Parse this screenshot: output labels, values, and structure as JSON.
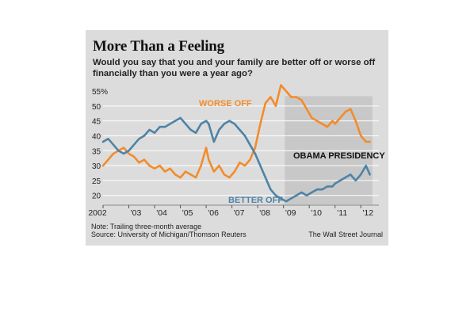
{
  "title": "More Than a Feeling",
  "subtitle": "Would you say that you and your family are better off or worse off financially than you were a year ago?",
  "note": "Note: Trailing three-month average",
  "source": "Source: University of Michigan/Thomson Reuters",
  "credit": "The Wall Street Journal",
  "colors": {
    "worse": "#f28c2a",
    "better": "#4e83a6",
    "shade": "#c8c8c8",
    "background": "#dcdcdc",
    "grid": "#ffffff"
  },
  "chart_data": {
    "type": "line",
    "ylim": [
      17,
      55
    ],
    "y_ticks": [
      "55%",
      "50",
      "45",
      "40",
      "35",
      "30",
      "25",
      "20"
    ],
    "x_ticks": [
      "2002",
      "'03",
      "'04",
      "'05",
      "'06",
      "'07",
      "'08",
      "'09",
      "'10",
      "'11",
      "'12"
    ],
    "shaded_region": {
      "label": "OBAMA PRESIDENCY",
      "x_start": 2009.05,
      "x_end": 2012.45
    },
    "series": [
      {
        "name": "WORSE OFF",
        "x": [
          2002.0,
          2002.2,
          2002.4,
          2002.6,
          2002.8,
          2003.0,
          2003.2,
          2003.4,
          2003.6,
          2003.8,
          2004.0,
          2004.2,
          2004.4,
          2004.6,
          2004.8,
          2005.0,
          2005.2,
          2005.4,
          2005.6,
          2005.8,
          2006.0,
          2006.1,
          2006.3,
          2006.5,
          2006.7,
          2006.9,
          2007.1,
          2007.3,
          2007.5,
          2007.7,
          2007.9,
          2008.1,
          2008.3,
          2008.5,
          2008.7,
          2008.9,
          2009.1,
          2009.3,
          2009.5,
          2009.7,
          2009.9,
          2010.1,
          2010.3,
          2010.5,
          2010.7,
          2010.9,
          2011.0,
          2011.2,
          2011.4,
          2011.6,
          2011.8,
          2012.0,
          2012.2,
          2012.35
        ],
        "values": [
          30,
          32,
          34,
          35,
          36,
          34,
          33,
          31,
          32,
          30,
          29,
          30,
          28,
          29,
          27,
          26,
          28,
          27,
          26,
          30,
          36,
          32,
          28,
          30,
          27,
          26,
          28,
          31,
          30,
          32,
          36,
          44,
          51,
          53,
          50,
          57,
          55,
          53,
          53,
          52,
          49,
          46,
          45,
          44,
          43,
          45,
          44,
          46,
          48,
          49,
          45,
          40,
          38,
          38
        ]
      },
      {
        "name": "BETTER OFF",
        "x": [
          2002.0,
          2002.2,
          2002.4,
          2002.6,
          2002.8,
          2003.0,
          2003.2,
          2003.4,
          2003.6,
          2003.8,
          2004.0,
          2004.2,
          2004.4,
          2004.6,
          2004.8,
          2005.0,
          2005.2,
          2005.4,
          2005.6,
          2005.8,
          2006.0,
          2006.1,
          2006.3,
          2006.5,
          2006.7,
          2006.9,
          2007.1,
          2007.3,
          2007.5,
          2007.7,
          2007.9,
          2008.1,
          2008.3,
          2008.5,
          2008.7,
          2008.9,
          2009.1,
          2009.3,
          2009.5,
          2009.7,
          2009.9,
          2010.1,
          2010.3,
          2010.5,
          2010.7,
          2010.9,
          2011.0,
          2011.2,
          2011.4,
          2011.6,
          2011.8,
          2012.0,
          2012.2,
          2012.35
        ],
        "values": [
          38,
          39,
          37,
          35,
          34,
          35,
          37,
          39,
          40,
          42,
          41,
          43,
          43,
          44,
          45,
          46,
          44,
          42,
          41,
          44,
          45,
          44,
          38,
          42,
          44,
          45,
          44,
          42,
          40,
          37,
          34,
          30,
          26,
          22,
          20,
          19,
          18,
          19,
          20,
          21,
          20,
          21,
          22,
          22,
          23,
          23,
          24,
          25,
          26,
          27,
          25,
          27,
          30,
          27
        ]
      }
    ],
    "annotations": [
      "WORSE OFF",
      "BETTER OFF",
      "OBAMA PRESIDENCY"
    ]
  }
}
